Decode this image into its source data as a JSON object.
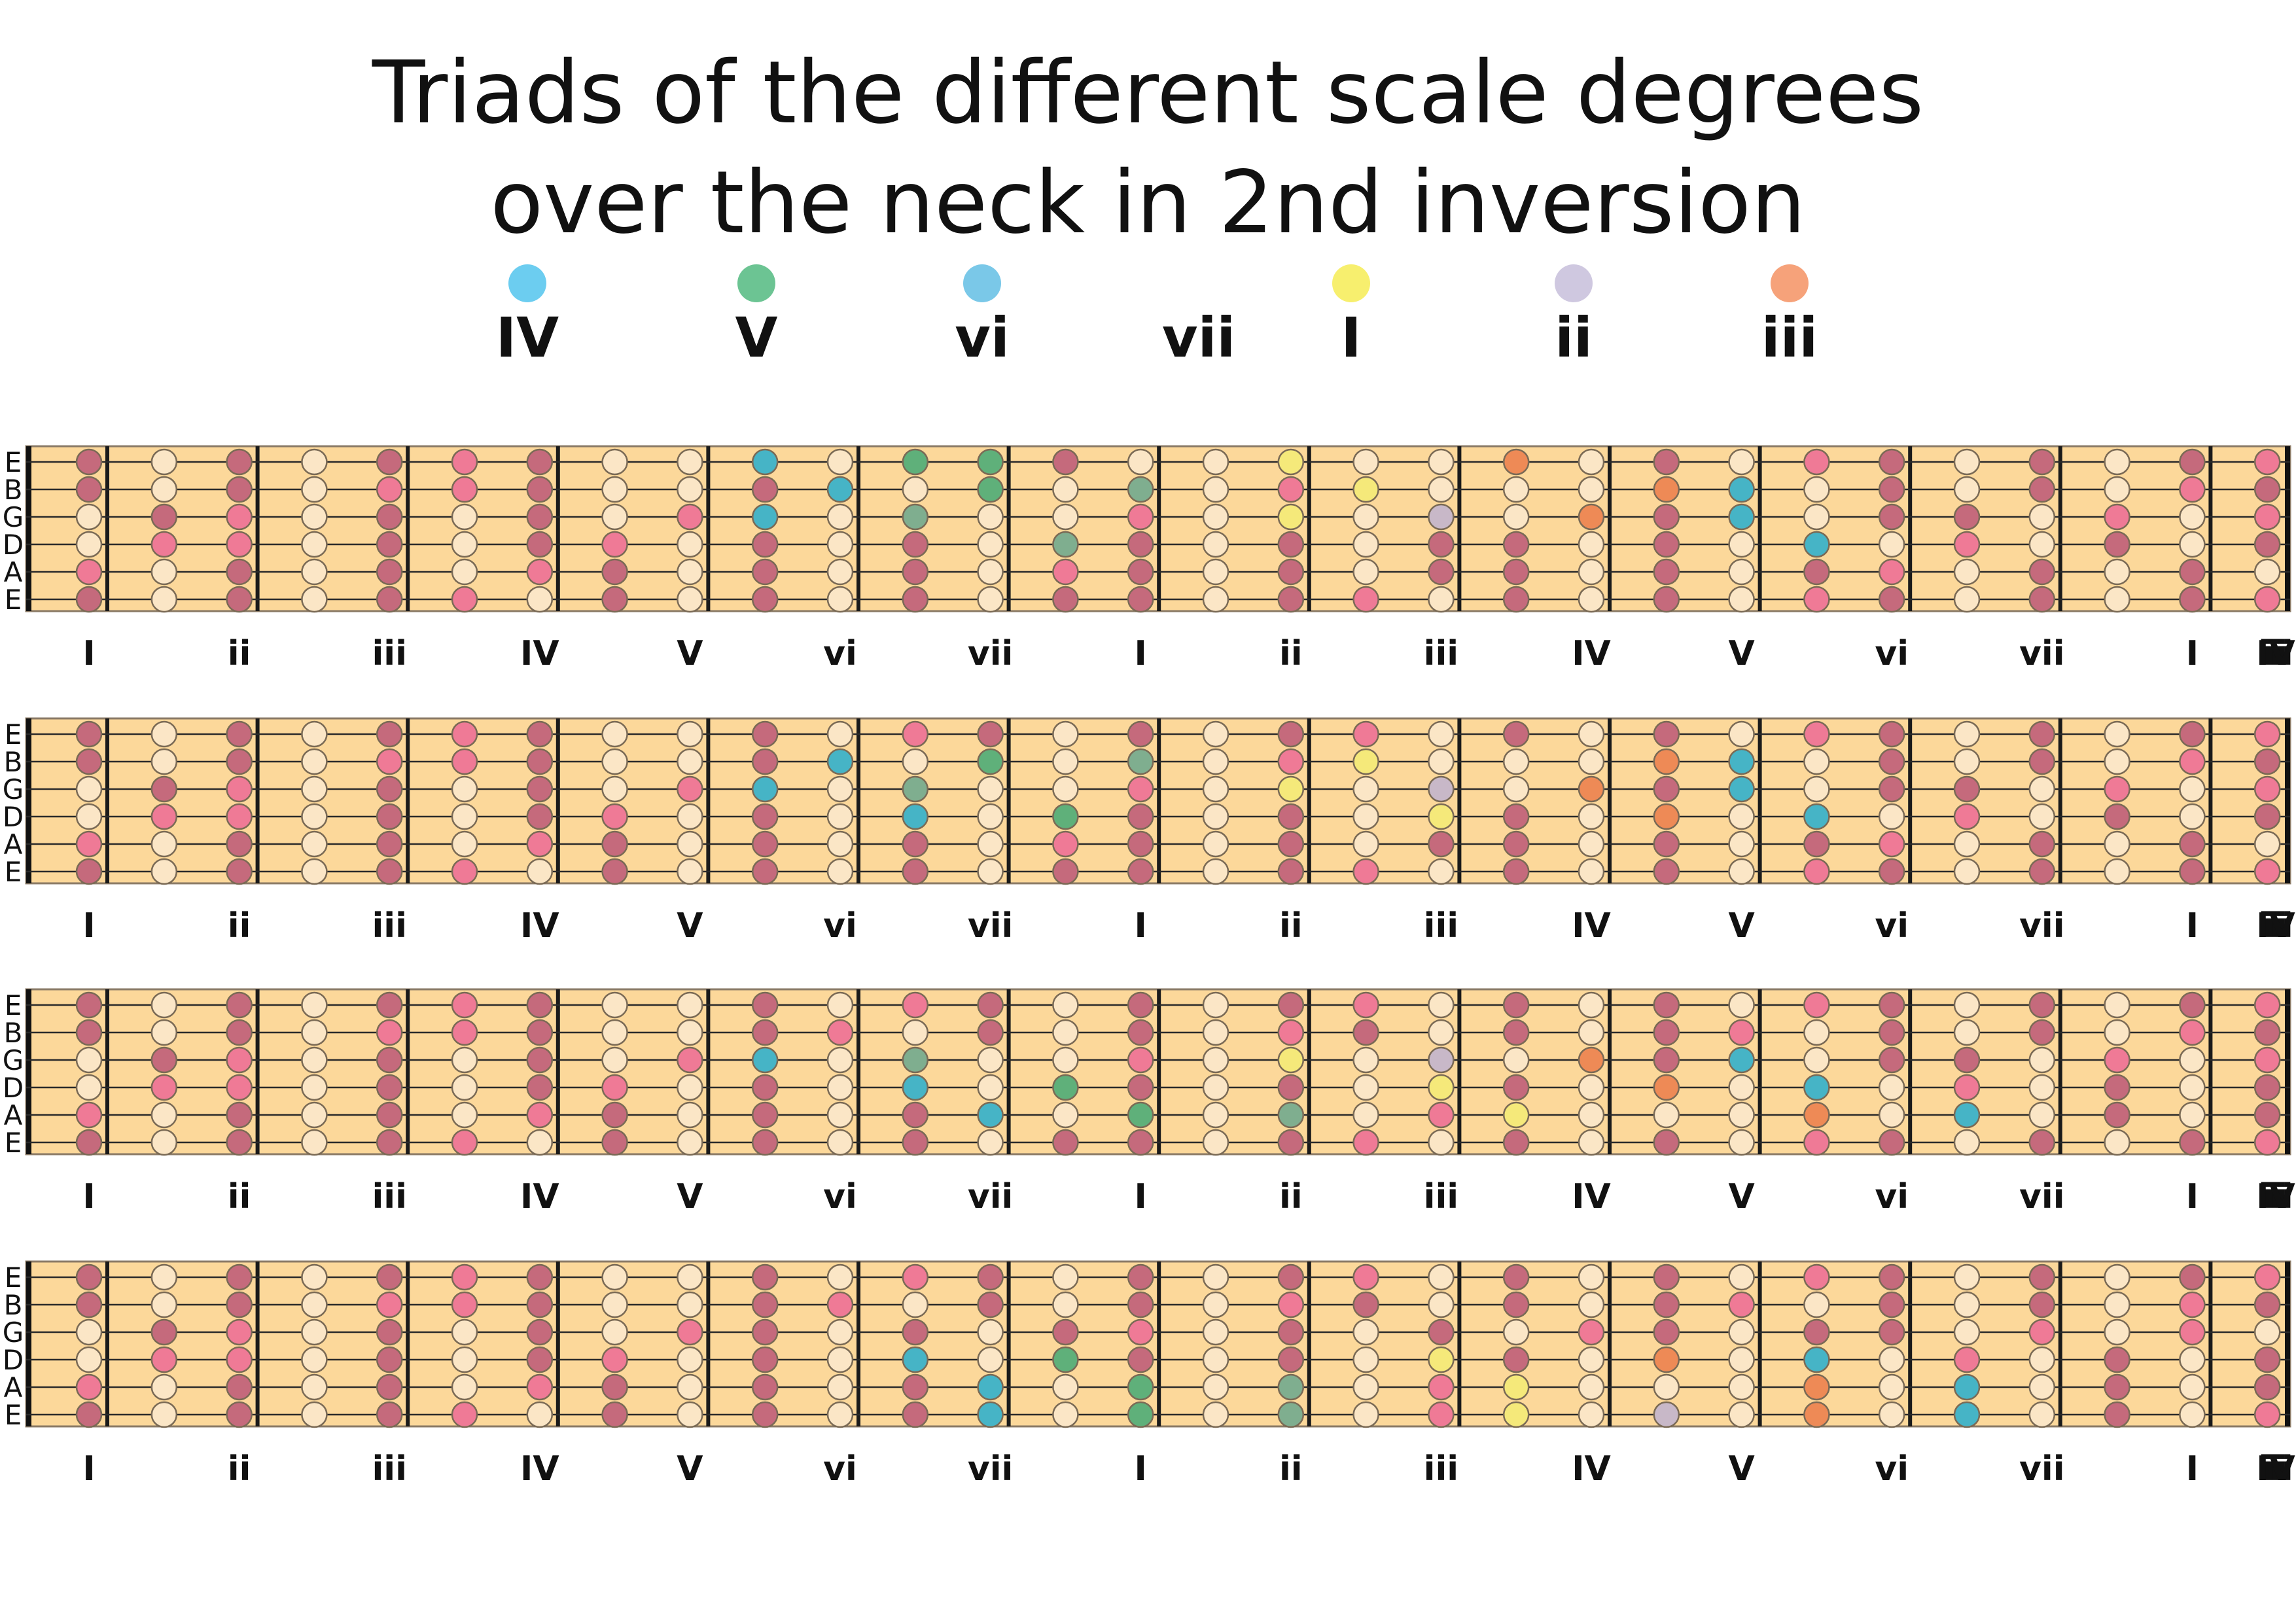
{
  "title": {
    "line1": "Triads of the different scale degrees",
    "line2": "over the neck in 2nd inversion"
  },
  "legend": [
    {
      "label": "IV",
      "color": "#6ccdf0"
    },
    {
      "label": "V",
      "color": "#6cc493"
    },
    {
      "label": "vi",
      "color": "#7ac8e8"
    },
    {
      "label": "vii",
      "color": ""
    },
    {
      "label": "I",
      "color": "#f7ef6e"
    },
    {
      "label": "ii",
      "color": "#cfc8e0"
    },
    {
      "label": "iii",
      "color": "#f6a27a"
    }
  ],
  "string_names": [
    "E",
    "B",
    "G",
    "D",
    "A",
    "E"
  ],
  "fret_labels": [
    "I",
    "ii",
    "iii",
    "IV",
    "V",
    "vi",
    "vii",
    "I",
    "ii",
    "iii",
    "IV",
    "V",
    "vi",
    "vii",
    "I",
    "ii",
    "iii",
    "IV"
  ],
  "note_colors": {
    "w": "#fbe6c6",
    "m": "#c56a7c",
    "p": "#ef7a96",
    "b": "#46b4c6",
    "g": "#5fb07a",
    "s": "#7fae8f",
    "y": "#f5e97a",
    "l": "#c8b8c8",
    "o": "#ee8a56"
  },
  "panels": [
    {
      "rows": [
        "mwmwmpmwwbwggmwwywwowmwpmwmwmp",
        "mwmwppmwwmbwgwswpywwwobwmwmwpm",
        "wmpwmwmwpbwswwpwywlwombwmmwpwp",
        "wppwmwmpwmwmwsmwmwmmwmwbwpwmwm",
        "pwmwmwpmwmwmwpmwmwmmwmwmpwmwmw",
        "mwmwmpwmwmwmwmmwmpwmwmwpmwmwmp"
      ]
    },
    {
      "rows": [
        "mwmwmpmwwmwpmwmwmpwmwmwpmwmwmp",
        "mwmwppmwwmbwgwswpywwwobwmwmwpm",
        "wmpwmwmwpbwswwpwywlwombwmmwpwp",
        "wppwmwmpwmwbwgmwmwymwowbwpwmwm",
        "pwmwmwpmwmwmwpmwmwmmwmwmpwmwmw",
        "mwmwmpwmwmwmwmmwmpwmwmwpmwmwmp"
      ]
    },
    {
      "rows": [
        "mwmwmpmwwmwpmwmwmpwmwmwpmwmwmp",
        "mwmwppmwwmpwmwmwpmwmwmpwmwmwpm",
        "wmpwmwmwpbwswwpwywlwombwmmwpwp",
        "wppwmwmpwmwbwgmwmwymwowbwpwmwm",
        "pwmwmwpmwmwmbwgwswpywwwowbwmwm",
        "mwmwmpwmwmwmwmmwmpwmwmwpmwmwmp"
      ]
    },
    {
      "rows": [
        "mwmwmpmwwmwpmwmwmpwmwmwpmwmwmp",
        "mwmwppmwwmpwmwmwpmwmwmpwmwmwpm",
        "wmpwmwmwpmwmwmpwmwmwpmwmmwpwpw",
        "wppwmwmpwmwbwgmwmwymwowbwpwmwm",
        "pwmwmwpmwmwmbwgwswpywwwowbwmwm",
        "mwmwmpwmwmwmbwgwswpywlwowbwmwp"
      ]
    }
  ]
}
